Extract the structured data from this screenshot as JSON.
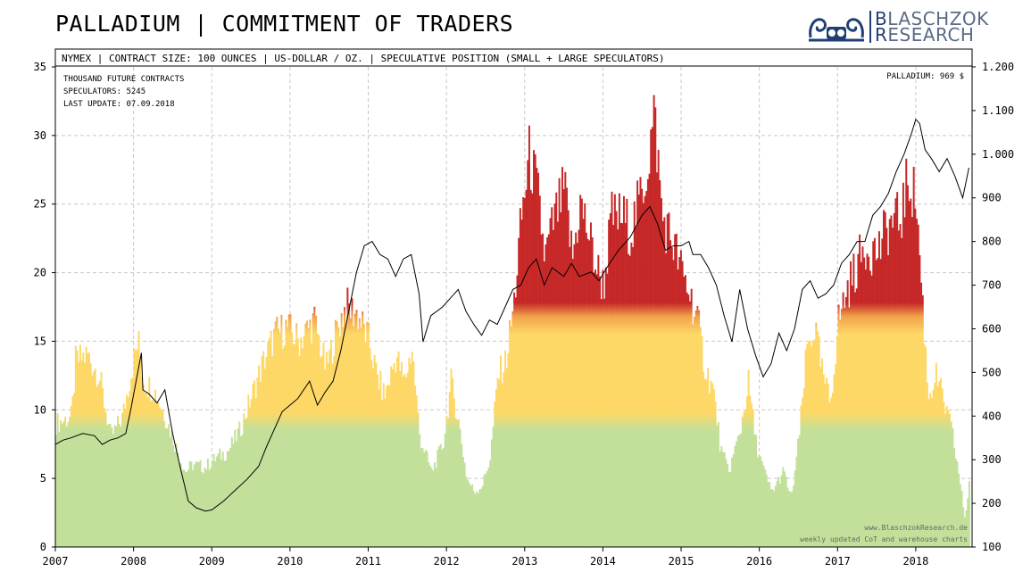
{
  "title": "PALLADIUM | COMMITMENT OF TRADERS",
  "brand": {
    "line1_cap": "B",
    "line1_rest": "LASCHZOK",
    "line2_cap": "R",
    "line2_rest": "ESEARCH",
    "color": "#1f3f74"
  },
  "chart_data": {
    "type": "bar",
    "header": "NYMEX | CONTRACT SIZE: 100 OUNCES | US-DOLLAR / OZ. | SPECULATIVE POSITION (SMALL + LARGE SPECULATORS)",
    "info": {
      "units": "THOUSAND FUTURE CONTRACTS",
      "speculators_label": "SPECULATORS:",
      "speculators_value": "5245",
      "last_update_label": "LAST UPDATE:",
      "last_update_value": "07.09.2018"
    },
    "price_label": "PALLADIUM: 969 $",
    "footer": [
      "www.BlaschzokResearch.de",
      "weekly updated CoT and warehouse charts"
    ],
    "x_ticks": [
      "2007",
      "2008",
      "2009",
      "2010",
      "2011",
      "2012",
      "2013",
      "2014",
      "2015",
      "2016",
      "2017",
      "2018"
    ],
    "xlim": [
      2007.0,
      2018.72
    ],
    "y_left": {
      "lim": [
        0,
        35
      ],
      "ticks": [
        "0",
        "5",
        "10",
        "15",
        "20",
        "25",
        "30",
        "35"
      ]
    },
    "y_right": {
      "lim": [
        100,
        1200
      ],
      "ticks": [
        "100",
        "200",
        "300",
        "400",
        "500",
        "600",
        "700",
        "800",
        "900",
        "1.000",
        "1.100",
        "1.200"
      ]
    },
    "grid": true,
    "colors": {
      "green": "#c2e09a",
      "yellow": "#fdd866",
      "orange": "#f2a24a",
      "red": "#c62828",
      "price": "#000000",
      "grid": "#c8c8c8"
    },
    "bars": {
      "name": "Speculative position (thousand contracts)",
      "start": 2007.0,
      "step_years": 0.0192,
      "keypoints": [
        [
          2007.0,
          9.0
        ],
        [
          2007.2,
          9.5
        ],
        [
          2007.25,
          13.5
        ],
        [
          2007.4,
          14.0
        ],
        [
          2007.55,
          12.5
        ],
        [
          2007.7,
          8.0
        ],
        [
          2007.85,
          9.5
        ],
        [
          2007.95,
          12.5
        ],
        [
          2008.05,
          15.0
        ],
        [
          2008.12,
          12.0
        ],
        [
          2008.25,
          11.5
        ],
        [
          2008.4,
          9.5
        ],
        [
          2008.55,
          7.0
        ],
        [
          2008.65,
          5.5
        ],
        [
          2008.75,
          6.0
        ],
        [
          2008.9,
          5.8
        ],
        [
          2009.05,
          6.5
        ],
        [
          2009.2,
          7.0
        ],
        [
          2009.35,
          8.5
        ],
        [
          2009.5,
          11.0
        ],
        [
          2009.65,
          13.5
        ],
        [
          2009.8,
          15.5
        ],
        [
          2009.95,
          16.0
        ],
        [
          2010.1,
          15.0
        ],
        [
          2010.3,
          16.5
        ],
        [
          2010.45,
          13.0
        ],
        [
          2010.6,
          16.0
        ],
        [
          2010.7,
          17.5
        ],
        [
          2010.85,
          17.0
        ],
        [
          2011.0,
          15.0
        ],
        [
          2011.1,
          12.5
        ],
        [
          2011.2,
          11.0
        ],
        [
          2011.35,
          14.0
        ],
        [
          2011.45,
          12.0
        ],
        [
          2011.55,
          14.5
        ],
        [
          2011.65,
          8.0
        ],
        [
          2011.8,
          5.5
        ],
        [
          2011.95,
          7.5
        ],
        [
          2012.05,
          12.0
        ],
        [
          2012.15,
          9.0
        ],
        [
          2012.25,
          5.0
        ],
        [
          2012.35,
          4.0
        ],
        [
          2012.45,
          4.5
        ],
        [
          2012.55,
          6.5
        ],
        [
          2012.65,
          12.5
        ],
        [
          2012.75,
          13.5
        ],
        [
          2012.85,
          17.5
        ],
        [
          2012.95,
          24.0
        ],
        [
          2013.05,
          28.5
        ],
        [
          2013.15,
          26.0
        ],
        [
          2013.25,
          21.0
        ],
        [
          2013.35,
          23.5
        ],
        [
          2013.5,
          26.0
        ],
        [
          2013.6,
          21.0
        ],
        [
          2013.7,
          25.0
        ],
        [
          2013.8,
          23.0
        ],
        [
          2013.9,
          20.5
        ],
        [
          2014.0,
          19.0
        ],
        [
          2014.1,
          24.0
        ],
        [
          2014.25,
          24.0
        ],
        [
          2014.35,
          23.0
        ],
        [
          2014.45,
          25.0
        ],
        [
          2014.55,
          27.5
        ],
        [
          2014.65,
          31.5
        ],
        [
          2014.75,
          24.0
        ],
        [
          2014.9,
          22.0
        ],
        [
          2015.0,
          20.0
        ],
        [
          2015.1,
          18.5
        ],
        [
          2015.2,
          16.5
        ],
        [
          2015.3,
          13.0
        ],
        [
          2015.4,
          11.5
        ],
        [
          2015.5,
          7.0
        ],
        [
          2015.6,
          5.5
        ],
        [
          2015.75,
          8.5
        ],
        [
          2015.85,
          12.0
        ],
        [
          2015.95,
          7.5
        ],
        [
          2016.05,
          5.5
        ],
        [
          2016.15,
          4.0
        ],
        [
          2016.3,
          5.5
        ],
        [
          2016.4,
          3.5
        ],
        [
          2016.5,
          8.0
        ],
        [
          2016.6,
          14.5
        ],
        [
          2016.7,
          16.0
        ],
        [
          2016.8,
          12.5
        ],
        [
          2016.9,
          10.5
        ],
        [
          2017.0,
          16.5
        ],
        [
          2017.1,
          18.5
        ],
        [
          2017.2,
          20.0
        ],
        [
          2017.35,
          22.0
        ],
        [
          2017.5,
          21.5
        ],
        [
          2017.65,
          23.5
        ],
        [
          2017.8,
          24.0
        ],
        [
          2017.9,
          27.0
        ],
        [
          2018.0,
          25.0
        ],
        [
          2018.08,
          17.5
        ],
        [
          2018.15,
          11.0
        ],
        [
          2018.25,
          12.5
        ],
        [
          2018.35,
          10.5
        ],
        [
          2018.45,
          8.5
        ],
        [
          2018.55,
          5.0
        ],
        [
          2018.62,
          2.0
        ],
        [
          2018.68,
          5.0
        ]
      ]
    },
    "price": {
      "name": "Palladium price (US-Dollar / oz.)",
      "points": [
        [
          2007.0,
          335
        ],
        [
          2007.1,
          345
        ],
        [
          2007.2,
          350
        ],
        [
          2007.35,
          360
        ],
        [
          2007.5,
          355
        ],
        [
          2007.6,
          335
        ],
        [
          2007.7,
          345
        ],
        [
          2007.8,
          350
        ],
        [
          2007.9,
          360
        ],
        [
          2007.97,
          420
        ],
        [
          2008.1,
          545
        ],
        [
          2008.12,
          460
        ],
        [
          2008.2,
          450
        ],
        [
          2008.3,
          430
        ],
        [
          2008.4,
          460
        ],
        [
          2008.5,
          360
        ],
        [
          2008.6,
          280
        ],
        [
          2008.7,
          205
        ],
        [
          2008.8,
          190
        ],
        [
          2008.92,
          182
        ],
        [
          2009.0,
          185
        ],
        [
          2009.15,
          205
        ],
        [
          2009.3,
          230
        ],
        [
          2009.45,
          255
        ],
        [
          2009.6,
          285
        ],
        [
          2009.7,
          330
        ],
        [
          2009.8,
          370
        ],
        [
          2009.9,
          410
        ],
        [
          2010.0,
          425
        ],
        [
          2010.1,
          440
        ],
        [
          2010.25,
          480
        ],
        [
          2010.35,
          425
        ],
        [
          2010.45,
          455
        ],
        [
          2010.55,
          480
        ],
        [
          2010.65,
          550
        ],
        [
          2010.75,
          640
        ],
        [
          2010.85,
          730
        ],
        [
          2010.95,
          790
        ],
        [
          2011.05,
          800
        ],
        [
          2011.15,
          770
        ],
        [
          2011.25,
          760
        ],
        [
          2011.35,
          720
        ],
        [
          2011.45,
          760
        ],
        [
          2011.55,
          770
        ],
        [
          2011.65,
          680
        ],
        [
          2011.7,
          570
        ],
        [
          2011.8,
          630
        ],
        [
          2011.95,
          650
        ],
        [
          2012.05,
          670
        ],
        [
          2012.15,
          690
        ],
        [
          2012.25,
          640
        ],
        [
          2012.35,
          610
        ],
        [
          2012.45,
          585
        ],
        [
          2012.55,
          620
        ],
        [
          2012.65,
          610
        ],
        [
          2012.75,
          650
        ],
        [
          2012.85,
          690
        ],
        [
          2012.95,
          700
        ],
        [
          2013.05,
          740
        ],
        [
          2013.15,
          760
        ],
        [
          2013.25,
          700
        ],
        [
          2013.35,
          740
        ],
        [
          2013.5,
          720
        ],
        [
          2013.6,
          750
        ],
        [
          2013.7,
          720
        ],
        [
          2013.85,
          730
        ],
        [
          2013.95,
          710
        ],
        [
          2014.05,
          740
        ],
        [
          2014.2,
          780
        ],
        [
          2014.35,
          810
        ],
        [
          2014.5,
          860
        ],
        [
          2014.6,
          880
        ],
        [
          2014.7,
          840
        ],
        [
          2014.8,
          780
        ],
        [
          2014.9,
          790
        ],
        [
          2015.0,
          790
        ],
        [
          2015.1,
          800
        ],
        [
          2015.15,
          770
        ],
        [
          2015.25,
          770
        ],
        [
          2015.35,
          740
        ],
        [
          2015.45,
          700
        ],
        [
          2015.55,
          630
        ],
        [
          2015.65,
          570
        ],
        [
          2015.75,
          690
        ],
        [
          2015.85,
          600
        ],
        [
          2015.95,
          540
        ],
        [
          2016.05,
          490
        ],
        [
          2016.15,
          520
        ],
        [
          2016.25,
          590
        ],
        [
          2016.35,
          550
        ],
        [
          2016.45,
          600
        ],
        [
          2016.55,
          690
        ],
        [
          2016.65,
          710
        ],
        [
          2016.75,
          670
        ],
        [
          2016.85,
          680
        ],
        [
          2016.95,
          700
        ],
        [
          2017.05,
          750
        ],
        [
          2017.15,
          770
        ],
        [
          2017.25,
          800
        ],
        [
          2017.35,
          800
        ],
        [
          2017.45,
          860
        ],
        [
          2017.55,
          880
        ],
        [
          2017.65,
          910
        ],
        [
          2017.75,
          960
        ],
        [
          2017.85,
          1000
        ],
        [
          2017.95,
          1050
        ],
        [
          2018.0,
          1080
        ],
        [
          2018.05,
          1070
        ],
        [
          2018.12,
          1010
        ],
        [
          2018.2,
          990
        ],
        [
          2018.3,
          960
        ],
        [
          2018.4,
          990
        ],
        [
          2018.5,
          950
        ],
        [
          2018.6,
          900
        ],
        [
          2018.68,
          969
        ]
      ]
    }
  }
}
